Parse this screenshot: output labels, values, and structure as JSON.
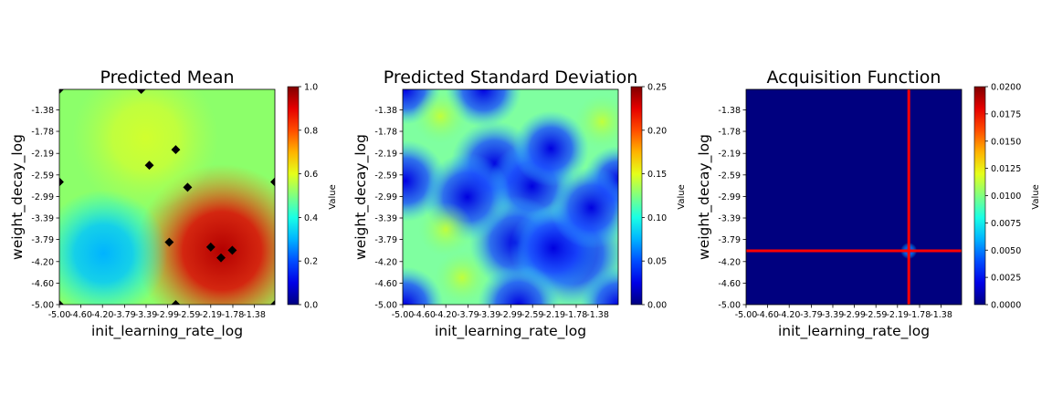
{
  "chart_data": [
    {
      "type": "heatmap",
      "title": "Predicted Mean",
      "xlabel": "init_learning_rate_log",
      "ylabel": "weight_decay_log",
      "xlim": [
        -5.0,
        -1.0
      ],
      "ylim": [
        -5.0,
        -1.0
      ],
      "x_ticks": [
        "-5.00",
        "-4.60",
        "-4.20",
        "-3.79",
        "-3.39",
        "-2.99",
        "-2.59",
        "-2.19",
        "-1.78",
        "-1.38"
      ],
      "y_ticks": [
        "-5.00",
        "-4.60",
        "-4.20",
        "-3.79",
        "-3.39",
        "-2.99",
        "-2.59",
        "-2.19",
        "-1.78",
        "-1.38"
      ],
      "colorbar": {
        "label": "Value",
        "min": 0,
        "max": 1.0,
        "ticks": [
          "0.0",
          "0.2",
          "0.4",
          "0.6",
          "0.8",
          "1.0"
        ]
      },
      "colormap": "jet",
      "observed_points": [
        {
          "x": -5.0,
          "y": -1.0
        },
        {
          "x": -3.48,
          "y": -1.0
        },
        {
          "x": -5.0,
          "y": -2.72
        },
        {
          "x": -1.0,
          "y": -2.72
        },
        {
          "x": -2.84,
          "y": -2.12
        },
        {
          "x": -3.33,
          "y": -2.41
        },
        {
          "x": -2.62,
          "y": -2.82
        },
        {
          "x": -2.96,
          "y": -3.84
        },
        {
          "x": -2.19,
          "y": -3.93
        },
        {
          "x": -1.79,
          "y": -3.99
        },
        {
          "x": -2.0,
          "y": -4.13
        },
        {
          "x": -5.0,
          "y": -5.0
        },
        {
          "x": -2.84,
          "y": -5.0
        },
        {
          "x": -1.0,
          "y": -5.0
        }
      ],
      "surface_peaks": [
        {
          "x": -1.98,
          "y": -4.0,
          "value": 0.95
        },
        {
          "x": -4.18,
          "y": -4.05,
          "value": 0.3
        },
        {
          "x": -3.4,
          "y": -1.9,
          "value": 0.58
        }
      ]
    },
    {
      "type": "heatmap",
      "title": "Predicted Standard Deviation",
      "xlabel": "init_learning_rate_log",
      "ylabel": "weight_decay_log",
      "xlim": [
        -5.0,
        -1.0
      ],
      "ylim": [
        -5.0,
        -1.0
      ],
      "x_ticks": [
        "-5.00",
        "-4.60",
        "-4.20",
        "-3.79",
        "-3.39",
        "-2.99",
        "-2.59",
        "-2.19",
        "-1.78",
        "-1.38"
      ],
      "y_ticks": [
        "-5.00",
        "-4.60",
        "-4.20",
        "-3.79",
        "-3.39",
        "-2.99",
        "-2.59",
        "-2.19",
        "-1.78",
        "-1.38"
      ],
      "colorbar": {
        "label": "Value",
        "min": 0,
        "max": 0.25,
        "ticks": [
          "0.00",
          "0.05",
          "0.10",
          "0.15",
          "0.20",
          "0.25"
        ]
      },
      "colormap": "jet",
      "base_value": 0.16
    },
    {
      "type": "heatmap",
      "title": "Acquisition Function",
      "xlabel": "init_learning_rate_log",
      "ylabel": "weight_decay_log",
      "xlim": [
        -5.0,
        -1.0
      ],
      "ylim": [
        -5.0,
        -1.0
      ],
      "x_ticks": [
        "-5.00",
        "-4.60",
        "-4.20",
        "-3.79",
        "-3.39",
        "-2.99",
        "-2.59",
        "-2.19",
        "-1.78",
        "-1.38"
      ],
      "y_ticks": [
        "-5.00",
        "-4.60",
        "-4.20",
        "-3.79",
        "-3.39",
        "-2.99",
        "-2.59",
        "-2.19",
        "-1.78",
        "-1.38"
      ],
      "colorbar": {
        "label": "Value",
        "min": 0,
        "max": 0.02,
        "ticks": [
          "0.0000",
          "0.0025",
          "0.0050",
          "0.0075",
          "0.0100",
          "0.0125",
          "0.0150",
          "0.0175",
          "0.0200"
        ]
      },
      "colormap": "jet",
      "next_point": {
        "x": -1.98,
        "y": -4.0
      },
      "peak_value": 0.004,
      "crosshair_color": "#ff0000"
    }
  ]
}
